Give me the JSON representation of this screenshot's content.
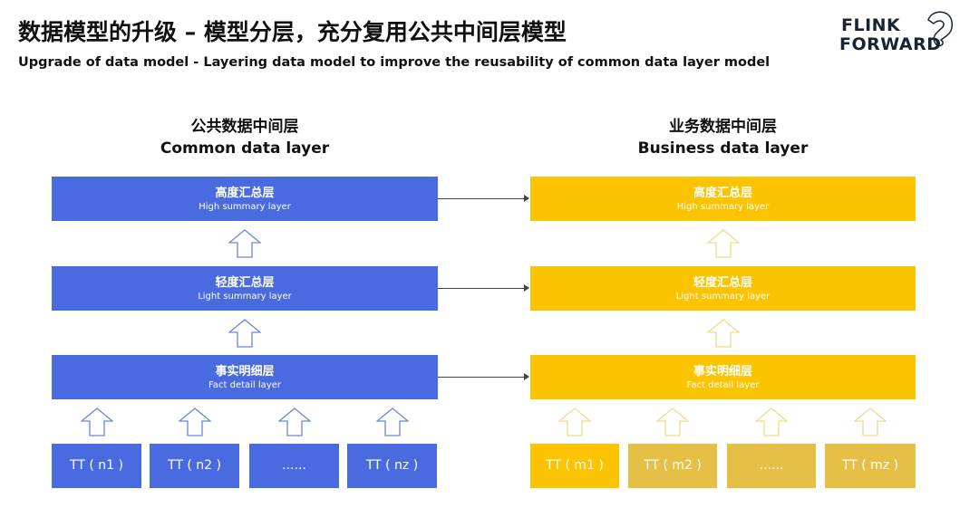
{
  "header": {
    "title": "数据模型的升级 – 模型分层，充分复用公共中间层模型",
    "subtitle": "Upgrade of data model - Layering data model to improve the reusability of common data layer model",
    "logo": [
      "FLINK",
      "FORWARD"
    ]
  },
  "colors": {
    "blue": "#4a6be0",
    "yellow": "#fcc300",
    "tan": "#e6bf47"
  },
  "left": {
    "title_cn": "公共数据中间层",
    "title_en": "Common data layer",
    "layers": [
      {
        "cn": "高度汇总层",
        "en": "High summary layer"
      },
      {
        "cn": "轻度汇总层",
        "en": "Light summary layer"
      },
      {
        "cn": "事实明细层",
        "en": "Fact detail layer"
      }
    ],
    "sources": [
      "TT ( n1 )",
      "TT ( n2 )",
      "......",
      "TT ( nz )"
    ]
  },
  "right": {
    "title_cn": "业务数据中间层",
    "title_en": "Business data layer",
    "layers": [
      {
        "cn": "高度汇总层",
        "en": "High summary layer"
      },
      {
        "cn": "轻度汇总层",
        "en": "Light summary layer"
      },
      {
        "cn": "事实明细层",
        "en": "Fact detail layer"
      }
    ],
    "sources": [
      "TT ( m1 )",
      "TT ( m2 )",
      "......",
      "TT ( mz )"
    ]
  }
}
